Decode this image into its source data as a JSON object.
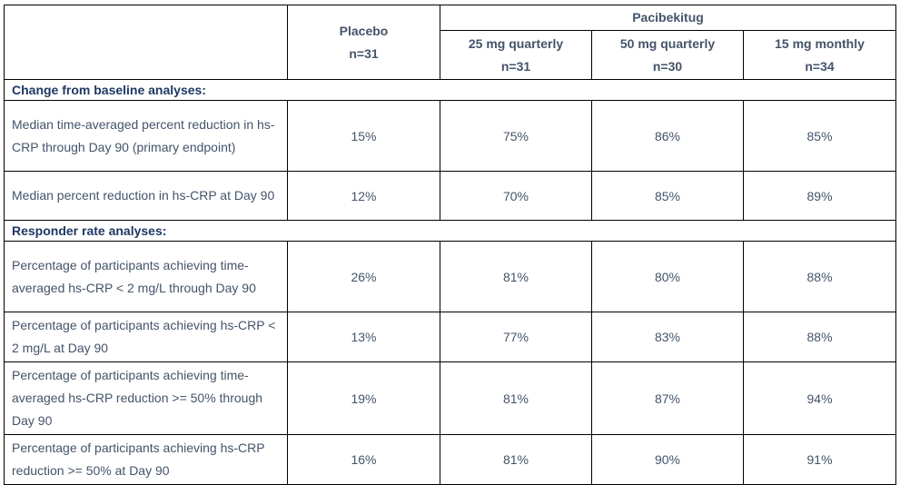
{
  "colors": {
    "header_text": "#1F3864",
    "body_text": "#44546A",
    "border": "#000000",
    "background": "#FFFFFF"
  },
  "table": {
    "group_header": "Pacibekitug",
    "columns": [
      {
        "label": "Placebo",
        "n": "n=31"
      },
      {
        "label": "25 mg quarterly",
        "n": "n=31"
      },
      {
        "label": "50 mg quarterly",
        "n": "n=30"
      },
      {
        "label": "15 mg monthly",
        "n": "n=34"
      }
    ],
    "sections": [
      {
        "title": "Change from baseline analyses:",
        "rows": [
          {
            "label": "Median time-averaged percent reduction in hs-CRP through Day 90 (primary endpoint)",
            "values": [
              "15%",
              "75%",
              "86%",
              "85%"
            ]
          },
          {
            "label": "Median percent reduction in hs-CRP at Day 90",
            "values": [
              "12%",
              "70%",
              "85%",
              "89%"
            ]
          }
        ]
      },
      {
        "title": "Responder rate analyses:",
        "rows": [
          {
            "label": "Percentage of participants achieving time-averaged hs-CRP < 2 mg/L through Day 90",
            "values": [
              "26%",
              "81%",
              "80%",
              "88%"
            ]
          },
          {
            "label": "Percentage of participants achieving hs-CRP < 2 mg/L at Day 90",
            "values": [
              "13%",
              "77%",
              "83%",
              "88%"
            ]
          },
          {
            "label": "Percentage of participants achieving time-averaged hs-CRP reduction >= 50% through Day 90",
            "values": [
              "19%",
              "81%",
              "87%",
              "94%"
            ]
          },
          {
            "label": "Percentage of participants achieving hs-CRP reduction >= 50% at Day 90",
            "values": [
              "16%",
              "81%",
              "90%",
              "91%"
            ]
          }
        ]
      }
    ]
  }
}
